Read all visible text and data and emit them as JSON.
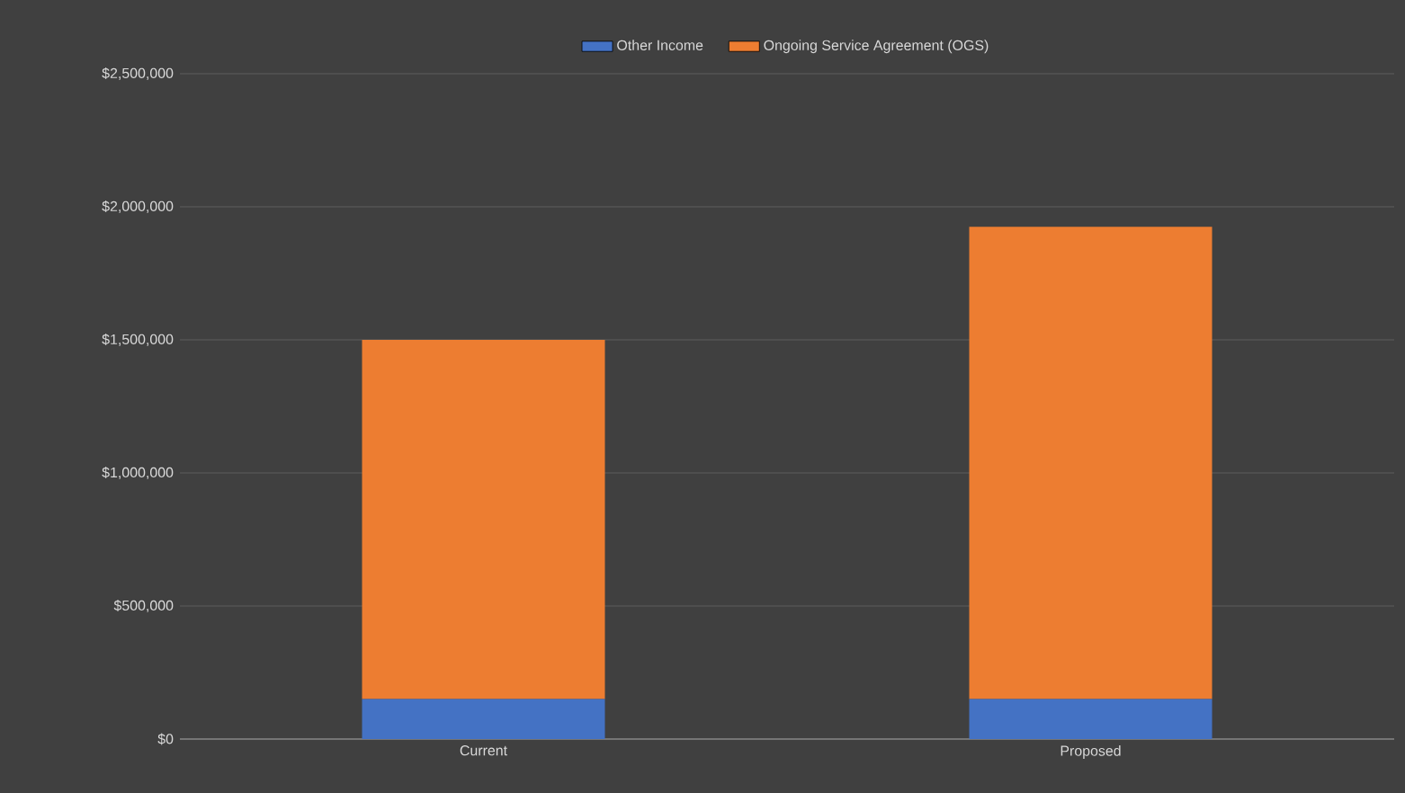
{
  "chart_data": {
    "type": "bar",
    "stacked": true,
    "categories": [
      "Current",
      "Proposed"
    ],
    "series": [
      {
        "name": "Other Income",
        "color": "#4472c4",
        "values": [
          150000,
          150000
        ]
      },
      {
        "name": "Ongoing Service Agreement (OGS)",
        "color": "#ed7d31",
        "values": [
          1350000,
          1775000
        ]
      }
    ],
    "ylim": [
      0,
      2500000
    ],
    "yticks": [
      {
        "value": 0,
        "label": "$0"
      },
      {
        "value": 500000,
        "label": "$500,000"
      },
      {
        "value": 1000000,
        "label": "$1,000,000"
      },
      {
        "value": 1500000,
        "label": "$1,500,000"
      },
      {
        "value": 2000000,
        "label": "$2,000,000"
      },
      {
        "value": 2500000,
        "label": "$2,500,000"
      }
    ],
    "grid": "y",
    "legend": "top"
  }
}
